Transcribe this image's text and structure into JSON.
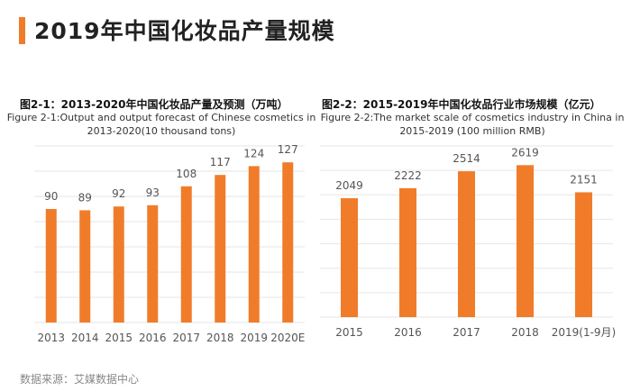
{
  "header": {
    "title": "2019年中国化妆品产量规模",
    "accent_color": "#F07C2A"
  },
  "source_note": "数据来源：艾媒数据中心",
  "chart_data": [
    {
      "type": "bar",
      "title": "图2-1：2013-2020年中国化妆品产量及预测（万吨）",
      "subtitle_line1": "Figure 2-1:Output and output forecast of Chinese cosmetics in",
      "subtitle_line2": "2013-2020(10 thousand tons)",
      "categories": [
        "2013",
        "2014",
        "2015",
        "2016",
        "2017",
        "2018",
        "2019",
        "2020E"
      ],
      "values": [
        90,
        89,
        92,
        93,
        108,
        117,
        124,
        127
      ],
      "ylim": [
        0,
        140
      ],
      "grid": true,
      "bar_color": "#F07C2A"
    },
    {
      "type": "bar",
      "title": "图2-2：2015-2019年中国化妆品行业市场规模（亿元）",
      "subtitle_line1": "Figure 2-2:The market scale of cosmetics industry in China in",
      "subtitle_line2": "2015-2019 (100 million RMB)",
      "categories": [
        "2015",
        "2016",
        "2017",
        "2018",
        "2019(1-9月)"
      ],
      "values": [
        2049,
        2222,
        2514,
        2619,
        2151
      ],
      "ylim": [
        0,
        2950
      ],
      "grid": true,
      "bar_color": "#F07C2A"
    }
  ]
}
